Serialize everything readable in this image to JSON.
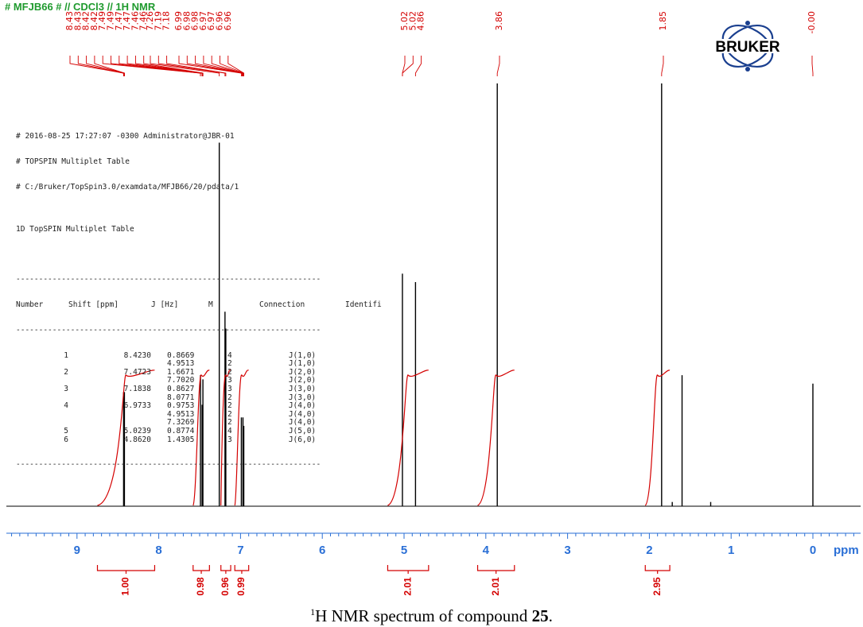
{
  "header": {
    "title": "# MFJB66 # // CDCl3 // 1H NMR",
    "logo_text": "BRUKER"
  },
  "caption": {
    "sup": "1",
    "text": "H NMR spectrum of compound ",
    "compound": "25",
    "end": "."
  },
  "table": {
    "meta": [
      "# 2016-08-25 17:27:07 -0300 Administrator@JBR-01",
      "# TOPSPIN Multiplet Table",
      "# C:/Bruker/TopSpin3.0/examdata/MFJB66/20/pdata/1",
      "",
      "1D TopSPIN Multiplet Table"
    ],
    "rule": "-------------------------------------------------------------------",
    "headers": [
      "Number",
      "Shift [ppm]",
      "J [Hz]",
      "M",
      "Connection",
      "Identifi"
    ],
    "rows": [
      [
        "1",
        "8.4230",
        "0.8669",
        "4",
        "J(1,0)"
      ],
      [
        "",
        "",
        "4.9513",
        "2",
        "J(1,0)"
      ],
      [
        "2",
        "7.4723",
        "1.6671",
        "2",
        "J(2,0)"
      ],
      [
        "",
        "",
        "7.7020",
        "3",
        "J(2,0)"
      ],
      [
        "3",
        "7.1838",
        "0.8627",
        "3",
        "J(3,0)"
      ],
      [
        "",
        "",
        "8.0771",
        "2",
        "J(3,0)"
      ],
      [
        "4",
        "6.9733",
        "0.9753",
        "2",
        "J(4,0)"
      ],
      [
        "",
        "",
        "4.9513",
        "2",
        "J(4,0)"
      ],
      [
        "",
        "",
        "7.3269",
        "2",
        "J(4,0)"
      ],
      [
        "5",
        "5.0239",
        "0.8774",
        "4",
        "J(5,0)"
      ],
      [
        "6",
        "4.8620",
        "1.4305",
        "3",
        "J(6,0)"
      ]
    ]
  },
  "chart_data": {
    "type": "line",
    "title": "# MFJB66 # // CDCl3 // 1H NMR",
    "xlabel": "ppm",
    "xlim": [
      9.85,
      -0.55
    ],
    "x_ticks": [
      9,
      8,
      7,
      6,
      5,
      4,
      3,
      2,
      1,
      0
    ],
    "peaks": [
      {
        "ppm": 8.43,
        "height": 0.27
      },
      {
        "ppm": 8.42,
        "height": 0.27
      },
      {
        "ppm": 7.49,
        "height": 0.31
      },
      {
        "ppm": 7.47,
        "height": 0.24
      },
      {
        "ppm": 7.46,
        "height": 0.3
      },
      {
        "ppm": 7.26,
        "height": 0.86
      },
      {
        "ppm": 7.19,
        "height": 0.46
      },
      {
        "ppm": 7.18,
        "height": 0.42
      },
      {
        "ppm": 6.99,
        "height": 0.21
      },
      {
        "ppm": 6.97,
        "height": 0.21
      },
      {
        "ppm": 6.96,
        "height": 0.19
      },
      {
        "ppm": 5.02,
        "height": 0.55
      },
      {
        "ppm": 4.86,
        "height": 0.53
      },
      {
        "ppm": 3.86,
        "height": 1.0
      },
      {
        "ppm": 1.85,
        "height": 1.0
      },
      {
        "ppm": 1.72,
        "height": 0.01
      },
      {
        "ppm": 1.6,
        "height": 0.31
      },
      {
        "ppm": 1.25,
        "height": 0.01
      },
      {
        "ppm": 0.0,
        "height": 0.29
      }
    ],
    "peak_labels": [
      {
        "text": "8.43",
        "ppm": 8.43
      },
      {
        "text": "8.43",
        "ppm": 8.43
      },
      {
        "text": "8.42",
        "ppm": 8.42
      },
      {
        "text": "8.42",
        "ppm": 8.42
      },
      {
        "text": "7.49",
        "ppm": 7.49
      },
      {
        "text": "7.49",
        "ppm": 7.49
      },
      {
        "text": "7.47",
        "ppm": 7.47
      },
      {
        "text": "7.47",
        "ppm": 7.47
      },
      {
        "text": "7.46",
        "ppm": 7.46
      },
      {
        "text": "7.46",
        "ppm": 7.46
      },
      {
        "text": "7.26",
        "ppm": 7.26
      },
      {
        "text": "7.19",
        "ppm": 7.19
      },
      {
        "text": "7.18",
        "ppm": 7.18
      },
      {
        "text": "6.99",
        "ppm": 6.99
      },
      {
        "text": "6.98",
        "ppm": 6.98
      },
      {
        "text": "6.98",
        "ppm": 6.98
      },
      {
        "text": "6.97",
        "ppm": 6.97
      },
      {
        "text": "6.97",
        "ppm": 6.97
      },
      {
        "text": "6.96",
        "ppm": 6.96
      },
      {
        "text": "6.96",
        "ppm": 6.96
      },
      {
        "text": "5.02",
        "ppm": 5.02
      },
      {
        "text": "5.02",
        "ppm": 5.02
      },
      {
        "text": "4.86",
        "ppm": 4.86
      },
      {
        "text": "3.86",
        "ppm": 3.86
      },
      {
        "text": "1.85",
        "ppm": 1.85
      },
      {
        "text": "-0.00",
        "ppm": 0.0
      }
    ],
    "integrals": [
      {
        "value": "1.00",
        "from": 8.75,
        "to": 8.05
      },
      {
        "value": "0.98",
        "from": 7.58,
        "to": 7.38
      },
      {
        "value": "0.96",
        "from": 7.24,
        "to": 7.12
      },
      {
        "value": "0.99",
        "from": 7.07,
        "to": 6.9
      },
      {
        "value": "2.01",
        "from": 5.2,
        "to": 4.7
      },
      {
        "value": "2.01",
        "from": 4.1,
        "to": 3.65
      },
      {
        "value": "2.95",
        "from": 2.05,
        "to": 1.75
      }
    ],
    "colors": {
      "spectrum": "#000000",
      "annotation": "#d40000",
      "axis": "#2a6fd6"
    }
  }
}
